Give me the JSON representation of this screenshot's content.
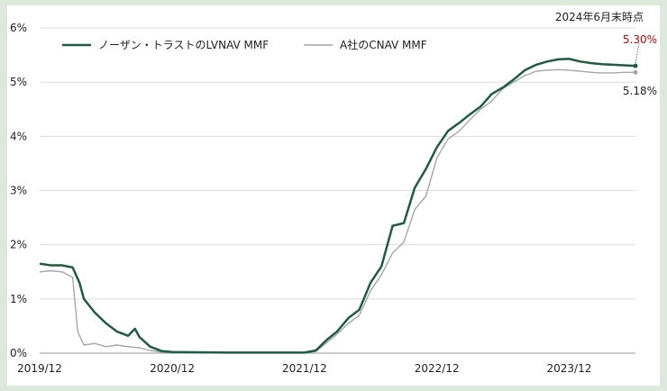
{
  "chart_data": {
    "type": "line",
    "title": "",
    "xlabel": "",
    "ylabel": "",
    "ylim": [
      0,
      6
    ],
    "y_ticks": [
      "0%",
      "1%",
      "2%",
      "3%",
      "4%",
      "5%",
      "6%"
    ],
    "x_ticks": [
      "2019/12",
      "2020/12",
      "2021/12",
      "2022/12",
      "2023/12"
    ],
    "grid": "horizontal",
    "legend": "top-left",
    "annotation": "2024年6月末時点",
    "colors": {
      "green": "#1f5c42",
      "gray": "#a6a6a6"
    },
    "series": [
      {
        "name": "ノーザン・トラストのLVNAV MMF",
        "color": "#1f5c42",
        "end_label": "5.30%",
        "points": [
          [
            "2019-12",
            1.65
          ],
          [
            "2020-01",
            1.62
          ],
          [
            "2020-02",
            1.62
          ],
          [
            "2020-03",
            1.58
          ],
          [
            "2020-03-20",
            1.3
          ],
          [
            "2020-04",
            1.0
          ],
          [
            "2020-05",
            0.75
          ],
          [
            "2020-06",
            0.55
          ],
          [
            "2020-07",
            0.4
          ],
          [
            "2020-08",
            0.32
          ],
          [
            "2020-08-20",
            0.45
          ],
          [
            "2020-09",
            0.3
          ],
          [
            "2020-10",
            0.12
          ],
          [
            "2020-11",
            0.04
          ],
          [
            "2020-12",
            0.02
          ],
          [
            "2021-06",
            0.01
          ],
          [
            "2021-12",
            0.01
          ],
          [
            "2022-01",
            0.05
          ],
          [
            "2022-02",
            0.25
          ],
          [
            "2022-03",
            0.4
          ],
          [
            "2022-04",
            0.65
          ],
          [
            "2022-05",
            0.8
          ],
          [
            "2022-06",
            1.3
          ],
          [
            "2022-07",
            1.6
          ],
          [
            "2022-08",
            2.35
          ],
          [
            "2022-09",
            2.4
          ],
          [
            "2022-10",
            3.05
          ],
          [
            "2022-11",
            3.4
          ],
          [
            "2022-12",
            3.8
          ],
          [
            "2023-01",
            4.1
          ],
          [
            "2023-02",
            4.25
          ],
          [
            "2023-03",
            4.4
          ],
          [
            "2023-04",
            4.55
          ],
          [
            "2023-05",
            4.78
          ],
          [
            "2023-06",
            4.9
          ],
          [
            "2023-07",
            5.05
          ],
          [
            "2023-08",
            5.22
          ],
          [
            "2023-09",
            5.32
          ],
          [
            "2023-10",
            5.38
          ],
          [
            "2023-11",
            5.42
          ],
          [
            "2023-12",
            5.43
          ],
          [
            "2024-01",
            5.38
          ],
          [
            "2024-02",
            5.35
          ],
          [
            "2024-03",
            5.33
          ],
          [
            "2024-04",
            5.32
          ],
          [
            "2024-05",
            5.31
          ],
          [
            "2024-06",
            5.3
          ]
        ]
      },
      {
        "name": "A社のCNAV MMF",
        "color": "#a6a6a6",
        "end_label": "5.18%",
        "points": [
          [
            "2019-12",
            1.5
          ],
          [
            "2020-01",
            1.52
          ],
          [
            "2020-02",
            1.5
          ],
          [
            "2020-03",
            1.4
          ],
          [
            "2020-03-15",
            0.4
          ],
          [
            "2020-04",
            0.15
          ],
          [
            "2020-05",
            0.18
          ],
          [
            "2020-06",
            0.12
          ],
          [
            "2020-07",
            0.15
          ],
          [
            "2020-08",
            0.12
          ],
          [
            "2020-09",
            0.1
          ],
          [
            "2020-10",
            0.05
          ],
          [
            "2020-11",
            0.02
          ],
          [
            "2020-12",
            0.01
          ],
          [
            "2021-06",
            0.01
          ],
          [
            "2021-12",
            0.01
          ],
          [
            "2022-01",
            0.03
          ],
          [
            "2022-02",
            0.2
          ],
          [
            "2022-03",
            0.35
          ],
          [
            "2022-04",
            0.55
          ],
          [
            "2022-05",
            0.7
          ],
          [
            "2022-06",
            1.15
          ],
          [
            "2022-07",
            1.45
          ],
          [
            "2022-08",
            1.85
          ],
          [
            "2022-09",
            2.05
          ],
          [
            "2022-10",
            2.65
          ],
          [
            "2022-11",
            2.9
          ],
          [
            "2022-12",
            3.6
          ],
          [
            "2023-01",
            3.95
          ],
          [
            "2023-02",
            4.1
          ],
          [
            "2023-03",
            4.3
          ],
          [
            "2023-04",
            4.5
          ],
          [
            "2023-05",
            4.65
          ],
          [
            "2023-06",
            4.88
          ],
          [
            "2023-07",
            5.0
          ],
          [
            "2023-08",
            5.12
          ],
          [
            "2023-09",
            5.2
          ],
          [
            "2023-10",
            5.22
          ],
          [
            "2023-11",
            5.23
          ],
          [
            "2023-12",
            5.22
          ],
          [
            "2024-01",
            5.2
          ],
          [
            "2024-02",
            5.18
          ],
          [
            "2024-03",
            5.17
          ],
          [
            "2024-04",
            5.17
          ],
          [
            "2024-05",
            5.18
          ],
          [
            "2024-06",
            5.18
          ]
        ]
      }
    ]
  }
}
